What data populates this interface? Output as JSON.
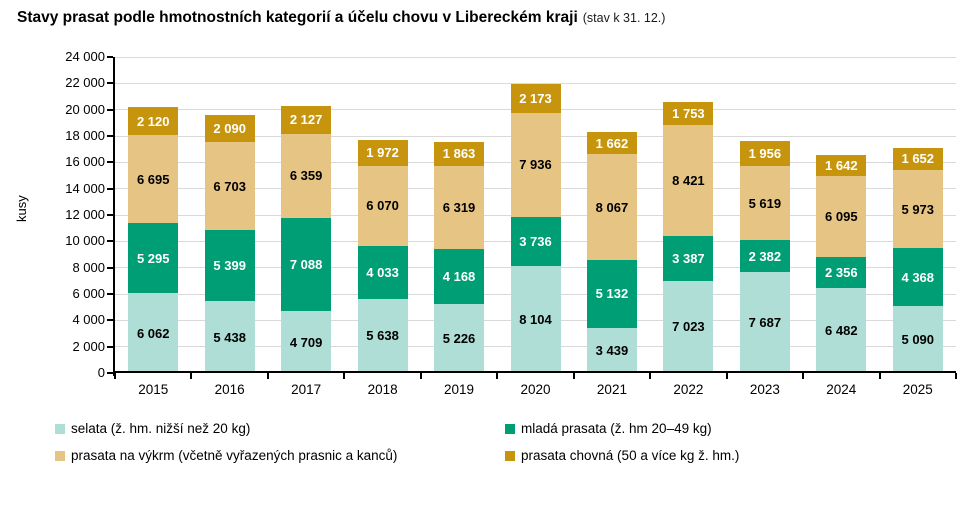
{
  "title": {
    "main": "Stavy prasat podle hmotnostních kategorií a účelu chovu v Libereckém kraji",
    "suffix": "(stav k 31. 12.)"
  },
  "chart_data": {
    "type": "bar",
    "stacked": true,
    "title": "Stavy prasat podle hmotnostních kategorií a účelu chovu v Libereckém kraji (stav k 31. 12.)",
    "ylabel": "kusy",
    "xlabel": "",
    "ylim": [
      0,
      24000
    ],
    "ytick_step": 2000,
    "grid": true,
    "legend_position": "bottom",
    "gridline_color": "#d9d9d9",
    "axis_color": "#000000",
    "categories": [
      "2015",
      "2016",
      "2017",
      "2018",
      "2019",
      "2020",
      "2021",
      "2022",
      "2023",
      "2024",
      "2025"
    ],
    "series": [
      {
        "name": "selata (ž. hm. nižší než 20 kg)",
        "color": "#AEDED5",
        "label_color": "#000000",
        "values": [
          6062,
          5438,
          4709,
          5638,
          5226,
          8104,
          3439,
          7023,
          7687,
          6482,
          5090
        ]
      },
      {
        "name": "mladá prasata (ž. hm 20–49 kg)",
        "color": "#009E74",
        "label_color": "#FFFFFF",
        "values": [
          5295,
          5399,
          7088,
          4033,
          4168,
          3736,
          5132,
          3387,
          2382,
          2356,
          4368
        ]
      },
      {
        "name": "prasata na výkrm (včetně vyřazených prasnic a kanců)",
        "color": "#E6C484",
        "label_color": "#000000",
        "values": [
          6695,
          6703,
          6359,
          6070,
          6319,
          7936,
          8067,
          8421,
          5619,
          6095,
          5973
        ]
      },
      {
        "name": "prasata chovná (50 a více kg ž. hm.)",
        "color": "#C7950D",
        "label_color": "#FFFFFF",
        "values": [
          2120,
          2090,
          2127,
          1972,
          1863,
          2173,
          1662,
          1753,
          1956,
          1642,
          1652
        ]
      }
    ]
  }
}
